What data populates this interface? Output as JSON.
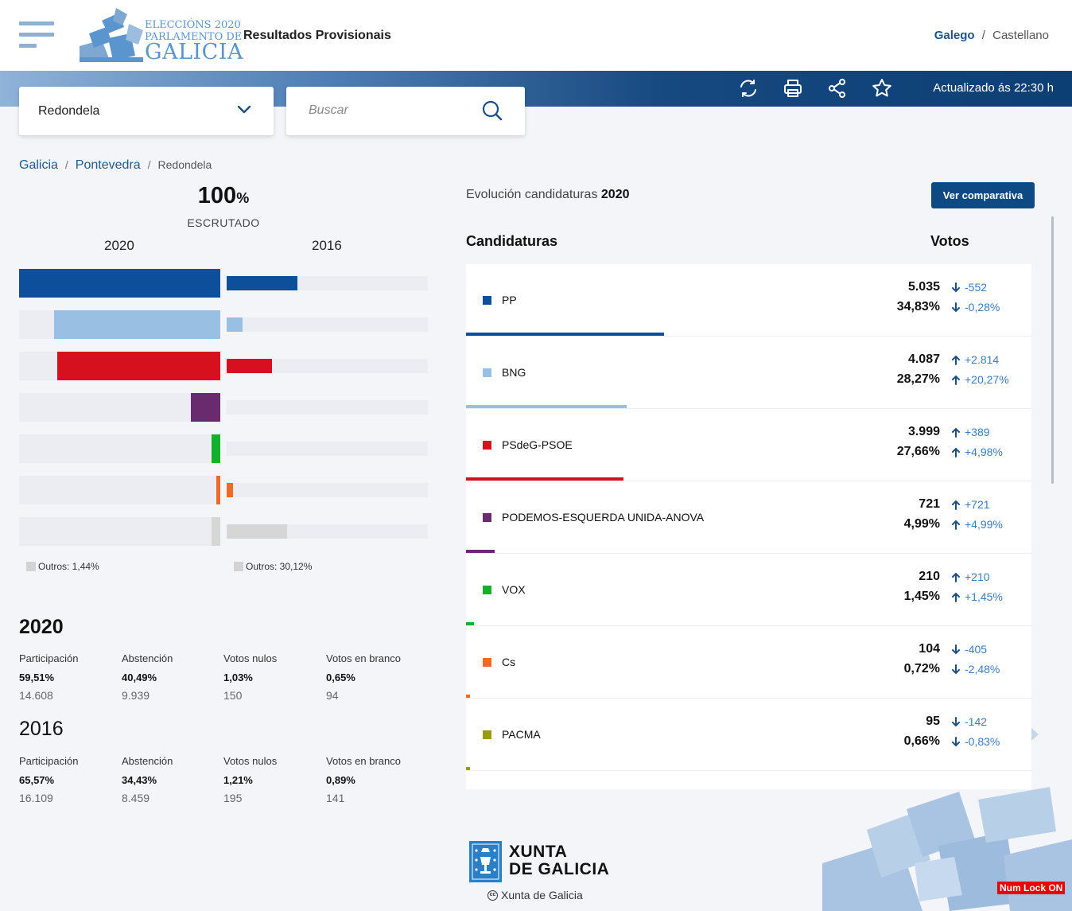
{
  "header": {
    "menu_icon": "hamburger-icon",
    "logo": {
      "line1": "ELECCIÓNS 2020",
      "line2": "PARLAMENTO DE",
      "line3": "GALICIA"
    },
    "site_title": "Resultados Provisionais",
    "lang_active": "Galego",
    "lang_sep": "/",
    "lang_other": "Castellano"
  },
  "toolbar": {
    "icons": [
      "refresh-icon",
      "print-icon",
      "share-icon",
      "star-icon"
    ],
    "updated": "Actualizado ás 22:30 h"
  },
  "location_select": {
    "value": "Redondela",
    "icon": "chevron-down-icon"
  },
  "search": {
    "placeholder": "Buscar",
    "icon": "search-icon"
  },
  "breadcrumb": {
    "items": [
      "Galicia",
      "Pontevedra",
      "Redondela"
    ],
    "sep": "/"
  },
  "scrutiny": {
    "percent": "100",
    "unit": "%",
    "label": "ESCRUTADO"
  },
  "comparison": {
    "year_a": "2020",
    "year_b": "2016",
    "outros_a": "Outros: 1,44%",
    "outros_b": "Outros: 30,12%"
  },
  "stats": [
    {
      "year": "2020",
      "items": [
        {
          "label": "Participación",
          "pct": "59,51%",
          "num": "14.608"
        },
        {
          "label": "Abstención",
          "pct": "40,49%",
          "num": "9.939"
        },
        {
          "label": "Votos nulos",
          "pct": "1,03%",
          "num": "150"
        },
        {
          "label": "Votos en branco",
          "pct": "0,65%",
          "num": "94"
        }
      ]
    },
    {
      "year": "2016",
      "items": [
        {
          "label": "Participación",
          "pct": "65,57%",
          "num": "16.109"
        },
        {
          "label": "Abstención",
          "pct": "34,43%",
          "num": "8.459"
        },
        {
          "label": "Votos nulos",
          "pct": "1,21%",
          "num": "195"
        },
        {
          "label": "Votos en branco",
          "pct": "0,89%",
          "num": "141"
        }
      ]
    }
  ],
  "evolution": {
    "prefix": "Evolución candidaturas",
    "year": "2020",
    "button": "Ver comparativa"
  },
  "table": {
    "col_name": "Candidaturas",
    "col_votes": "Votos"
  },
  "colors": {
    "accent": "#0d4a83",
    "link": "#1d5b92",
    "delta": "#3b7cc2"
  },
  "parties": [
    {
      "name": "PP",
      "color": "#0d4f9a",
      "votes": "5.035",
      "pct": "34,83%",
      "dir": "down",
      "dv": "-552",
      "dp": "-0,28%",
      "share2020": 34.83,
      "share2016": 35.11
    },
    {
      "name": "BNG",
      "color": "#99c0e2",
      "votes": "4.087",
      "pct": "28,27%",
      "dir": "up",
      "dv": "+2.814",
      "dp": "+20,27%",
      "share2020": 28.27,
      "share2016": 8.0
    },
    {
      "name": "PSdeG-PSOE",
      "color": "#d6101d",
      "votes": "3.999",
      "pct": "27,66%",
      "dir": "up",
      "dv": "+389",
      "dp": "+4,98%",
      "share2020": 27.66,
      "share2016": 22.68
    },
    {
      "name": "PODEMOS-ESQUERDA UNIDA-ANOVA",
      "color": "#6a2b6e",
      "votes": "721",
      "pct": "4,99%",
      "dir": "up",
      "dv": "+721",
      "dp": "+4,99%",
      "share2020": 4.99,
      "share2016": 0
    },
    {
      "name": "VOX",
      "color": "#12b02b",
      "votes": "210",
      "pct": "1,45%",
      "dir": "up",
      "dv": "+210",
      "dp": "+1,45%",
      "share2020": 1.45,
      "share2016": 0
    },
    {
      "name": "Cs",
      "color": "#ef6a24",
      "votes": "104",
      "pct": "0,72%",
      "dir": "down",
      "dv": "-405",
      "dp": "-2,48%",
      "share2020": 0.72,
      "share2016": 3.2
    },
    {
      "name": "PACMA",
      "color": "#9a9a14",
      "votes": "95",
      "pct": "0,66%",
      "dir": "down",
      "dv": "-142",
      "dp": "-0,83%",
      "share2020": 0.66,
      "share2016": 1.49
    }
  ],
  "others_bar": {
    "color": "#d6d6d6",
    "share2020": 1.44,
    "share2016": 30.12
  },
  "footer": {
    "xunta_line1": "XUNTA",
    "xunta_line2": "DE GALICIA",
    "credit": "Xunta de Galicia",
    "credit_icon": "cc-icon"
  },
  "status": {
    "numlock": "Num Lock ON"
  }
}
